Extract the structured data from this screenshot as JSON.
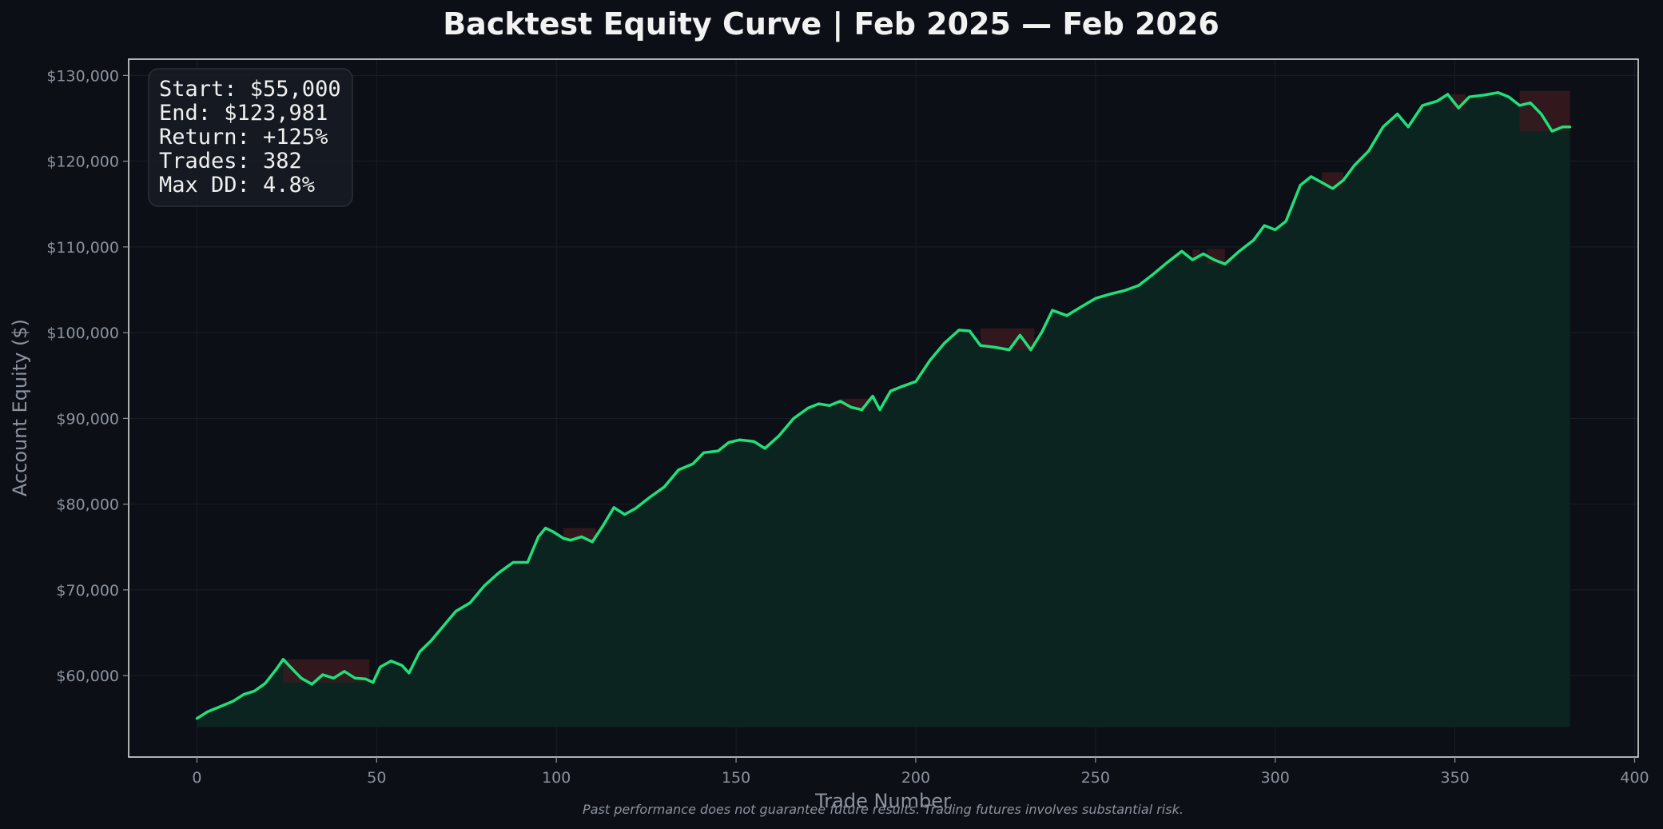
{
  "colors": {
    "background": "#0c0f16",
    "plot_border": "#e8e8e8",
    "equity_line": "#1fe07a",
    "equity_fill": "#0c2420",
    "drawdown_fill": "#3a1a1f",
    "stats_box": "#171b24",
    "muted_text": "#8b93a0",
    "title_text": "#f2f2f2"
  },
  "disclaimer": "Past performance does not guarantee future results. Trading futures involves substantial risk.",
  "stats": {
    "start": "Start: $55,000",
    "end": "End: $123,981",
    "return": "Return: +125%",
    "trades": "Trades: 382",
    "max_dd": "Max DD: 4.8%"
  },
  "chart_data": {
    "type": "line",
    "title": "Backtest Equity Curve  |  Feb 2025 — Feb 2026",
    "xlabel": "Trade Number",
    "ylabel": "Account Equity ($)",
    "xlim": [
      -19,
      401
    ],
    "ylim": [
      50500,
      131900
    ],
    "x_ticks": [
      0,
      50,
      100,
      150,
      200,
      250,
      300,
      350,
      400
    ],
    "x_tick_labels": [
      "0",
      "50",
      "100",
      "150",
      "200",
      "250",
      "300",
      "350",
      "400"
    ],
    "y_ticks": [
      60000,
      70000,
      80000,
      90000,
      100000,
      110000,
      120000,
      130000
    ],
    "y_tick_labels": [
      "$60,000",
      "$70,000",
      "$80,000",
      "$90,000",
      "$100,000",
      "$110,000",
      "$120,000",
      "$130,000"
    ],
    "fill_baseline": 54000,
    "series": [
      {
        "points": [
          [
            0,
            55000
          ],
          [
            3,
            55800
          ],
          [
            6,
            56300
          ],
          [
            10,
            57000
          ],
          [
            13,
            57800
          ],
          [
            16,
            58200
          ],
          [
            19,
            59100
          ],
          [
            22,
            60700
          ],
          [
            24,
            61900
          ],
          [
            26,
            61000
          ],
          [
            29,
            59700
          ],
          [
            32,
            59000
          ],
          [
            35,
            60100
          ],
          [
            38,
            59700
          ],
          [
            41,
            60500
          ],
          [
            44,
            59700
          ],
          [
            47,
            59600
          ],
          [
            49,
            59200
          ],
          [
            51,
            61000
          ],
          [
            54,
            61700
          ],
          [
            57,
            61200
          ],
          [
            59,
            60300
          ],
          [
            62,
            62800
          ],
          [
            65,
            64000
          ],
          [
            68,
            65500
          ],
          [
            72,
            67500
          ],
          [
            76,
            68500
          ],
          [
            80,
            70500
          ],
          [
            84,
            72000
          ],
          [
            88,
            73200
          ],
          [
            92,
            73200
          ],
          [
            95,
            76200
          ],
          [
            97,
            77200
          ],
          [
            99,
            76800
          ],
          [
            102,
            76000
          ],
          [
            104,
            75800
          ],
          [
            107,
            76200
          ],
          [
            110,
            75600
          ],
          [
            113,
            77500
          ],
          [
            116,
            79600
          ],
          [
            119,
            78800
          ],
          [
            122,
            79500
          ],
          [
            126,
            80800
          ],
          [
            130,
            82000
          ],
          [
            134,
            84000
          ],
          [
            138,
            84700
          ],
          [
            141,
            86000
          ],
          [
            145,
            86200
          ],
          [
            148,
            87200
          ],
          [
            151,
            87500
          ],
          [
            155,
            87300
          ],
          [
            158,
            86500
          ],
          [
            162,
            88000
          ],
          [
            166,
            90000
          ],
          [
            170,
            91200
          ],
          [
            173,
            91700
          ],
          [
            176,
            91500
          ],
          [
            179,
            92000
          ],
          [
            182,
            91300
          ],
          [
            185,
            91000
          ],
          [
            188,
            92600
          ],
          [
            190,
            91000
          ],
          [
            193,
            93200
          ],
          [
            196,
            93700
          ],
          [
            200,
            94300
          ],
          [
            204,
            96800
          ],
          [
            208,
            98800
          ],
          [
            212,
            100300
          ],
          [
            215,
            100200
          ],
          [
            218,
            98500
          ],
          [
            222,
            98300
          ],
          [
            226,
            98000
          ],
          [
            229,
            99700
          ],
          [
            232,
            98000
          ],
          [
            235,
            100000
          ],
          [
            238,
            102600
          ],
          [
            242,
            102000
          ],
          [
            246,
            103000
          ],
          [
            250,
            104000
          ],
          [
            254,
            104500
          ],
          [
            258,
            104900
          ],
          [
            262,
            105500
          ],
          [
            266,
            106800
          ],
          [
            270,
            108200
          ],
          [
            274,
            109500
          ],
          [
            277,
            108500
          ],
          [
            280,
            109200
          ],
          [
            283,
            108500
          ],
          [
            286,
            108000
          ],
          [
            290,
            109500
          ],
          [
            294,
            110800
          ],
          [
            297,
            112500
          ],
          [
            300,
            112000
          ],
          [
            303,
            113000
          ],
          [
            307,
            117200
          ],
          [
            310,
            118200
          ],
          [
            313,
            117500
          ],
          [
            316,
            116800
          ],
          [
            319,
            117800
          ],
          [
            322,
            119500
          ],
          [
            326,
            121200
          ],
          [
            330,
            124000
          ],
          [
            334,
            125500
          ],
          [
            337,
            124000
          ],
          [
            341,
            126500
          ],
          [
            345,
            127000
          ],
          [
            348,
            127800
          ],
          [
            351,
            126200
          ],
          [
            354,
            127500
          ],
          [
            358,
            127700
          ],
          [
            362,
            128000
          ],
          [
            365,
            127500
          ],
          [
            368,
            126500
          ],
          [
            371,
            126800
          ],
          [
            374,
            125500
          ],
          [
            377,
            123500
          ],
          [
            380,
            124000
          ],
          [
            382,
            124000
          ]
        ]
      }
    ],
    "drawdown_regions": [
      {
        "x0": 24,
        "x1": 48,
        "peak": 61900,
        "trough": 59200
      },
      {
        "x0": 102,
        "x1": 111,
        "peak": 77200,
        "trough": 75600
      },
      {
        "x0": 179,
        "x1": 187,
        "peak": 92300,
        "trough": 91000
      },
      {
        "x0": 218,
        "x1": 233,
        "peak": 100500,
        "trough": 98000
      },
      {
        "x0": 277,
        "x1": 279,
        "peak": 109700,
        "trough": 108700
      },
      {
        "x0": 281,
        "x1": 286,
        "peak": 109800,
        "trough": 108000
      },
      {
        "x0": 313,
        "x1": 319,
        "peak": 118700,
        "trough": 116800
      },
      {
        "x0": 349,
        "x1": 353,
        "peak": 127800,
        "trough": 126000
      },
      {
        "x0": 368,
        "x1": 382,
        "peak": 128200,
        "trough": 123500
      }
    ]
  }
}
